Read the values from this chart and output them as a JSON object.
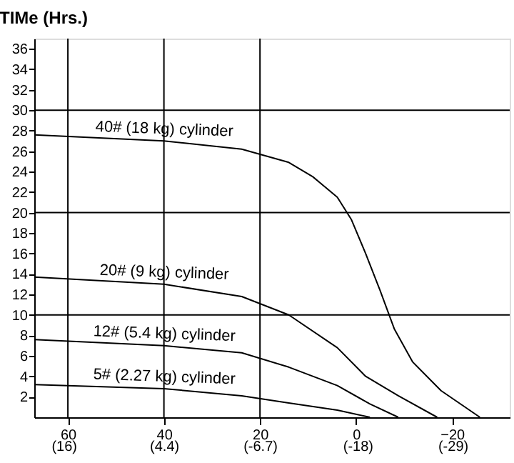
{
  "chart_data": {
    "type": "line",
    "ylabel": "TIMe (Hrs.)",
    "xlim": [
      67,
      -32
    ],
    "ylim": [
      0,
      37
    ],
    "xticks": [
      60,
      40,
      20,
      0,
      -20
    ],
    "x2lim": [
      19.4,
      -35.6
    ],
    "x2ticks": [
      {
        "value": 16,
        "label": "(16)"
      },
      {
        "value": 4.4,
        "label": "(4.4)"
      },
      {
        "value": -6.7,
        "label": "(-6.7)"
      },
      {
        "value": -18,
        "label": "(-18)"
      },
      {
        "value": -29,
        "label": "(-29)"
      }
    ],
    "yticks": [
      2,
      4,
      6,
      8,
      10,
      12,
      14,
      16,
      18,
      20,
      22,
      24,
      26,
      28,
      30,
      32,
      34,
      36
    ],
    "series": [
      {
        "color": "#000000",
        "x": [
          67,
          40,
          23.8,
          14,
          9,
          3.9,
          0.95,
          -2,
          -5,
          -8,
          -11.8,
          -17.7,
          -25.8
        ],
        "values": [
          27.6,
          27,
          26.2,
          24.9,
          23.5,
          21.5,
          19.3,
          16,
          12.4,
          8.6,
          5.4,
          2.6,
          0
        ]
      },
      {
        "color": "#000000",
        "x": [
          67,
          40,
          23.8,
          14,
          3.9,
          -2,
          -8.8,
          -16.9
        ],
        "values": [
          13.7,
          13,
          11.8,
          10,
          6.8,
          4,
          2.1,
          0
        ]
      },
      {
        "color": "#000000",
        "x": [
          67,
          40,
          23.8,
          14,
          3.9,
          -2.9,
          -8.8
        ],
        "values": [
          7.6,
          7,
          6.3,
          4.9,
          3.1,
          1.3,
          0
        ]
      },
      {
        "color": "#000000",
        "x": [
          67,
          40,
          23.8,
          14,
          3.9,
          -2.9
        ],
        "values": [
          3.2,
          2.8,
          2.1,
          1.4,
          0.7,
          0
        ]
      }
    ],
    "annotations": [
      "40# (18 kg) cylinder",
      "20# (9 kg) cylinder",
      "12# (5.4 kg) cylinder",
      "5# (2.27 kg) cylinder"
    ],
    "ref_lines": [
      {
        "axis": "y",
        "value": 10,
        "color": "#000000"
      },
      {
        "axis": "y",
        "value": 20,
        "color": "#000000"
      },
      {
        "axis": "y",
        "value": 30,
        "color": "#000000"
      },
      {
        "axis": "x",
        "value": 60,
        "color": "#000000"
      },
      {
        "axis": "x",
        "value": 40,
        "color": "#000000"
      },
      {
        "axis": "x",
        "value": 20,
        "color": "#000000"
      }
    ],
    "grid": false,
    "legend": false,
    "marker": "none",
    "line_style": "solid"
  }
}
